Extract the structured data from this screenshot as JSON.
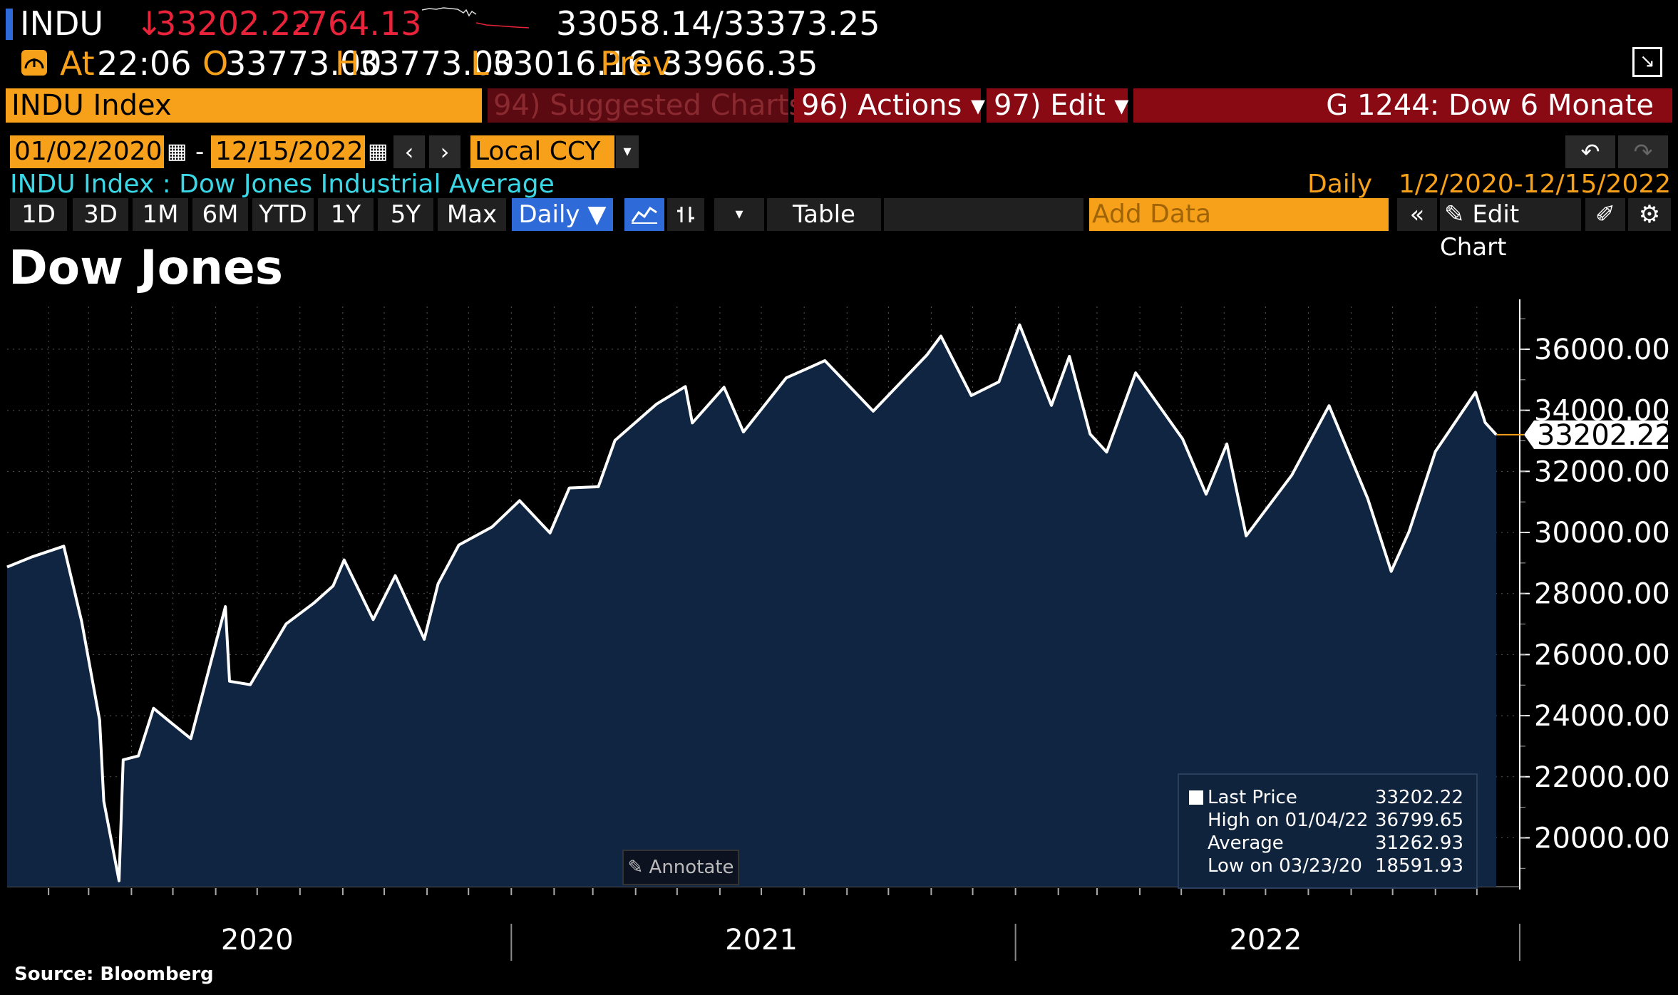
{
  "ticker": {
    "symbol": "INDU",
    "arrow": "↓",
    "last": "33202.22",
    "change": "-764.13",
    "bid_ask": "33058.14/33373.25",
    "at_label": "At",
    "time": "22:06",
    "open_label": "O",
    "open": "33773.00",
    "high_label": "H",
    "high": "33773.00",
    "low_label": "L",
    "low": "33016.16",
    "prev_label": "Prev",
    "prev": "33966.35"
  },
  "toolbar": {
    "security": "INDU Index",
    "suggested": "94) Suggested Charts",
    "actions": "96) Actions ▾",
    "edit": "97) Edit ▾",
    "chart_name": "G 1244: Dow 6 Monate"
  },
  "range": {
    "start": "01/02/2020",
    "end": "12/15/2022",
    "currency": "Local CCY",
    "description": "INDU Index : Dow Jones Industrial Average",
    "frequency": "Daily",
    "period": "1/2/2020-12/15/2022"
  },
  "period_buttons": [
    "1D",
    "3D",
    "1M",
    "6M",
    "YTD",
    "1Y",
    "5Y",
    "Max"
  ],
  "controls": {
    "daily": "Daily ▼",
    "table": "Table",
    "add_data_placeholder": "Add Data",
    "edit_chart": "Edit Chart"
  },
  "colors": {
    "orange": "#f7a11a",
    "red": "#e8233a",
    "area_fill": "#0f2541",
    "line": "#ffffff",
    "selected_button": "#2f6ad9"
  },
  "chart_data": {
    "type": "area",
    "title": "Dow Jones",
    "source": "Source: Bloomberg",
    "ylim": [
      18400,
      37400
    ],
    "y_ticks": [
      "36000.00",
      "34000.00",
      "32000.00",
      "30000.00",
      "28000.00",
      "26000.00",
      "24000.00",
      "22000.00",
      "20000.00"
    ],
    "x_year_labels": [
      "2020",
      "2021",
      "2022"
    ],
    "last_price_label": "33202.22",
    "grid": true,
    "x": [
      "2020-01-02",
      "2020-01-20",
      "2020-02-12",
      "2020-02-25",
      "2020-03-09",
      "2020-03-12",
      "2020-03-23",
      "2020-03-26",
      "2020-04-06",
      "2020-04-17",
      "2020-05-01",
      "2020-05-14",
      "2020-06-08",
      "2020-06-11",
      "2020-06-26",
      "2020-07-22",
      "2020-08-11",
      "2020-08-25",
      "2020-09-02",
      "2020-09-23",
      "2020-10-09",
      "2020-10-30",
      "2020-11-09",
      "2020-11-24",
      "2020-12-18",
      "2021-01-07",
      "2021-01-29",
      "2021-02-12",
      "2021-03-05",
      "2021-03-17",
      "2021-04-16",
      "2021-05-07",
      "2021-05-12",
      "2021-06-04",
      "2021-06-18",
      "2021-07-19",
      "2021-08-16",
      "2021-09-20",
      "2021-10-29",
      "2021-11-08",
      "2021-11-30",
      "2021-12-20",
      "2022-01-04",
      "2022-01-27",
      "2022-02-09",
      "2022-02-24",
      "2022-03-08",
      "2022-03-29",
      "2022-05-02",
      "2022-05-19",
      "2022-06-03",
      "2022-06-17",
      "2022-07-20",
      "2022-08-16",
      "2022-09-13",
      "2022-09-30",
      "2022-10-13",
      "2022-11-01",
      "2022-11-30",
      "2022-12-07",
      "2022-12-15"
    ],
    "series": [
      {
        "values": [
          28868,
          29200,
          29551,
          27081,
          23851,
          21200,
          18591,
          22552,
          22680,
          24242,
          23723,
          23247,
          27572,
          25128,
          25016,
          27005,
          27686,
          28249,
          29100,
          27147,
          28586,
          26502,
          28323,
          29591,
          30179,
          31041,
          29983,
          31458,
          31496,
          33015,
          34200,
          34778,
          33587,
          34756,
          33290,
          35061,
          35625,
          33970,
          35820,
          36432,
          34483,
          34932,
          36799,
          34160,
          35768,
          33223,
          32632,
          35228,
          33061,
          31253,
          32900,
          29888,
          31874,
          34152,
          31105,
          28725,
          30038,
          32653,
          34590,
          33597,
          33202
        ]
      }
    ]
  },
  "legend": {
    "last_price_label": "Last Price",
    "last_price_value": "33202.22",
    "high_label": "High on 01/04/22",
    "high_value": "36799.65",
    "average_label": "Average",
    "average_value": "31262.93",
    "low_label": "Low on 03/23/20",
    "low_value": "18591.93"
  },
  "annotate_label": "Annotate"
}
